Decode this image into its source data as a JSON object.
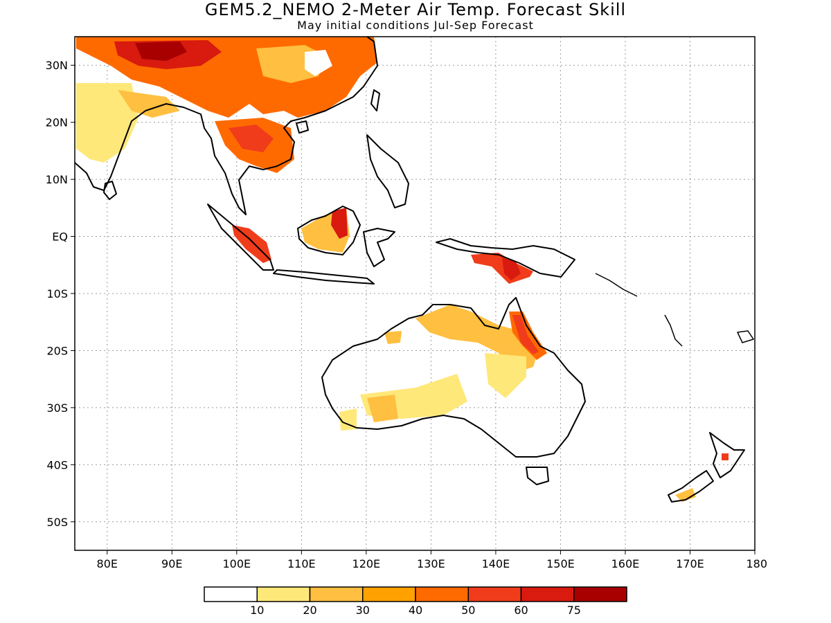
{
  "header": {
    "title": "GEM5.2_NEMO 2-Meter Air Temp. Forecast Skill",
    "subtitle": "May initial conditions  Jul-Sep Forecast"
  },
  "map": {
    "lon_range": [
      75,
      180
    ],
    "lat_range": [
      -55,
      35
    ],
    "lat_ticks": [
      {
        "lat": 30,
        "label": "30N"
      },
      {
        "lat": 20,
        "label": "20N"
      },
      {
        "lat": 10,
        "label": "10N"
      },
      {
        "lat": 0,
        "label": "EQ"
      },
      {
        "lat": -10,
        "label": "10S"
      },
      {
        "lat": -20,
        "label": "20S"
      },
      {
        "lat": -30,
        "label": "30S"
      },
      {
        "lat": -40,
        "label": "40S"
      },
      {
        "lat": -50,
        "label": "50S"
      }
    ],
    "lon_ticks": [
      {
        "lon": 80,
        "label": "80E"
      },
      {
        "lon": 90,
        "label": "90E"
      },
      {
        "lon": 100,
        "label": "100E"
      },
      {
        "lon": 110,
        "label": "110E"
      },
      {
        "lon": 120,
        "label": "120E"
      },
      {
        "lon": 130,
        "label": "130E"
      },
      {
        "lon": 140,
        "label": "140E"
      },
      {
        "lon": 150,
        "label": "150E"
      },
      {
        "lon": 160,
        "label": "160E"
      },
      {
        "lon": 170,
        "label": "170E"
      },
      {
        "lon": 180,
        "label": "180"
      }
    ],
    "grid": "dotted",
    "colors": {
      "c10": "#ffe87a",
      "c20": "#ffbf40",
      "c30": "#ffa100",
      "c40": "#ff6a00",
      "c50": "#f03c1a",
      "c60": "#d81a0f",
      "c75": "#a80000"
    }
  },
  "legend": {
    "colors": [
      "#ffffff",
      "#ffe87a",
      "#ffbf40",
      "#ffa100",
      "#ff6a00",
      "#f03c1a",
      "#d81a0f",
      "#a80000"
    ],
    "labels": [
      "10",
      "20",
      "30",
      "40",
      "50",
      "60",
      "75"
    ]
  }
}
